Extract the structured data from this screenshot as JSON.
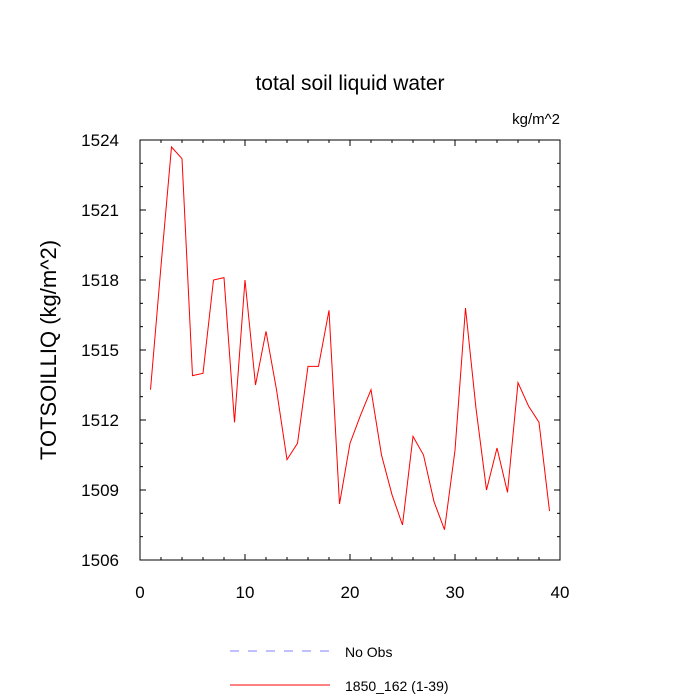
{
  "chart_data": {
    "type": "line",
    "title": "total soil liquid water",
    "units": "kg/m^2",
    "xlabel": "",
    "ylabel": "TOTSOILLIQ  (kg/m^2)",
    "xlim": [
      0,
      40
    ],
    "ylim": [
      1506,
      1524
    ],
    "xticks": [
      0,
      10,
      20,
      30,
      40
    ],
    "yticks": [
      1506,
      1509,
      1512,
      1515,
      1518,
      1521,
      1524
    ],
    "grid": false,
    "x": [
      1,
      2,
      3,
      4,
      5,
      6,
      7,
      8,
      9,
      10,
      11,
      12,
      13,
      14,
      15,
      16,
      17,
      18,
      19,
      20,
      21,
      22,
      23,
      24,
      25,
      26,
      27,
      28,
      29,
      30,
      31,
      32,
      33,
      34,
      35,
      36,
      37,
      38,
      39
    ],
    "series": [
      {
        "name": "1850_162 (1-39)",
        "color": "#ff0000",
        "dash": "solid",
        "values": [
          1513.3,
          1518.6,
          1523.7,
          1523.2,
          1513.9,
          1514.0,
          1518.0,
          1518.1,
          1511.9,
          1518.0,
          1513.5,
          1515.8,
          1513.3,
          1510.3,
          1511.0,
          1514.3,
          1514.3,
          1516.7,
          1508.4,
          1511.0,
          1512.2,
          1513.3,
          1510.5,
          1508.8,
          1507.5,
          1511.3,
          1510.5,
          1508.5,
          1507.3,
          1510.7,
          1516.8,
          1512.5,
          1509.0,
          1510.8,
          1508.9,
          1513.6,
          1512.6,
          1511.9,
          1508.1
        ]
      }
    ],
    "legend": {
      "placement": "bottom",
      "entries": [
        {
          "label": "No Obs",
          "color": "#8080ff",
          "dash": "dashed"
        },
        {
          "label": "1850_162 (1-39)",
          "color": "#ff0000",
          "dash": "solid"
        }
      ]
    }
  }
}
